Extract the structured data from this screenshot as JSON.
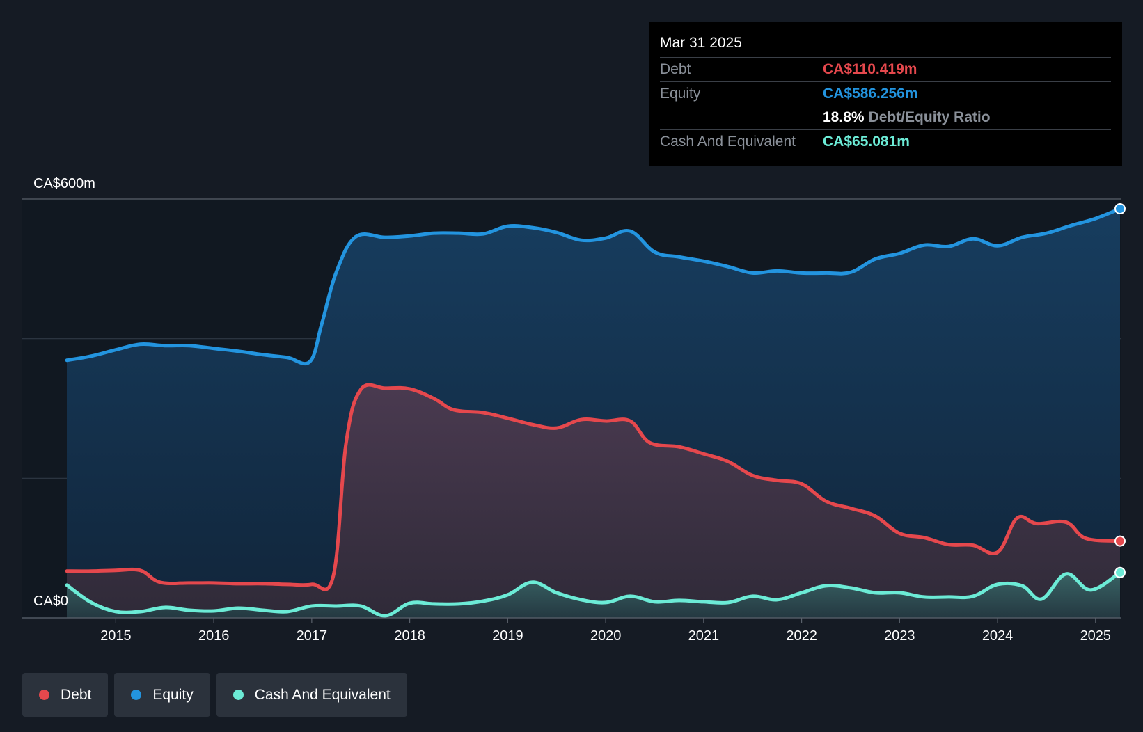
{
  "tooltip": {
    "date": "Mar 31 2025",
    "rows": [
      {
        "label": "Debt",
        "value": "CA$110.419m",
        "color": "#e5484d"
      },
      {
        "label": "Equity",
        "value": "CA$586.256m",
        "color": "#2394df"
      },
      {
        "label": "",
        "value": "18.8%",
        "extra": "Debt/Equity Ratio",
        "color": "#ffffff"
      },
      {
        "label": "Cash And Equivalent",
        "value": "CA$65.081m",
        "color": "#6cebd6"
      }
    ]
  },
  "legend": [
    {
      "label": "Debt",
      "color": "#e5484d"
    },
    {
      "label": "Equity",
      "color": "#2394df"
    },
    {
      "label": "Cash And Equivalent",
      "color": "#6cebd6"
    }
  ],
  "chart_data": {
    "type": "area",
    "y_top_label": "CA$600m",
    "y_bottom_label": "CA$0",
    "ylim": [
      0,
      600
    ],
    "xlim": [
      2014.5,
      2025.25
    ],
    "x_ticks": [
      "2015",
      "2016",
      "2017",
      "2018",
      "2019",
      "2020",
      "2021",
      "2022",
      "2023",
      "2024",
      "2025"
    ],
    "grid": true,
    "legend_position": "bottom-left",
    "series": [
      {
        "name": "Equity",
        "color": "#2394df",
        "points": [
          [
            2014.5,
            369
          ],
          [
            2014.75,
            375
          ],
          [
            2015.0,
            384
          ],
          [
            2015.25,
            392
          ],
          [
            2015.5,
            390
          ],
          [
            2015.75,
            390
          ],
          [
            2016.0,
            386
          ],
          [
            2016.25,
            382
          ],
          [
            2016.5,
            377
          ],
          [
            2016.75,
            373
          ],
          [
            2016.98,
            367
          ],
          [
            2017.1,
            420
          ],
          [
            2017.25,
            495
          ],
          [
            2017.45,
            546
          ],
          [
            2017.75,
            545
          ],
          [
            2018.0,
            547
          ],
          [
            2018.25,
            551
          ],
          [
            2018.5,
            551
          ],
          [
            2018.75,
            550
          ],
          [
            2019.0,
            561
          ],
          [
            2019.25,
            559
          ],
          [
            2019.5,
            552
          ],
          [
            2019.75,
            541
          ],
          [
            2020.0,
            544
          ],
          [
            2020.25,
            554
          ],
          [
            2020.5,
            524
          ],
          [
            2020.75,
            517
          ],
          [
            2021.0,
            511
          ],
          [
            2021.25,
            503
          ],
          [
            2021.5,
            494
          ],
          [
            2021.75,
            497
          ],
          [
            2022.0,
            494
          ],
          [
            2022.25,
            494
          ],
          [
            2022.5,
            495
          ],
          [
            2022.75,
            514
          ],
          [
            2023.0,
            522
          ],
          [
            2023.25,
            534
          ],
          [
            2023.5,
            532
          ],
          [
            2023.75,
            543
          ],
          [
            2024.0,
            533
          ],
          [
            2024.25,
            545
          ],
          [
            2024.5,
            551
          ],
          [
            2024.75,
            562
          ],
          [
            2025.0,
            572
          ],
          [
            2025.25,
            586
          ]
        ]
      },
      {
        "name": "Debt",
        "color": "#e5484d",
        "points": [
          [
            2014.5,
            67
          ],
          [
            2014.75,
            67
          ],
          [
            2015.0,
            68
          ],
          [
            2015.25,
            68
          ],
          [
            2015.45,
            51
          ],
          [
            2015.75,
            50
          ],
          [
            2016.0,
            50
          ],
          [
            2016.25,
            49
          ],
          [
            2016.5,
            49
          ],
          [
            2016.75,
            48
          ],
          [
            2017.0,
            48
          ],
          [
            2017.22,
            60
          ],
          [
            2017.35,
            250
          ],
          [
            2017.5,
            327
          ],
          [
            2017.75,
            329
          ],
          [
            2018.0,
            328
          ],
          [
            2018.25,
            314
          ],
          [
            2018.45,
            298
          ],
          [
            2018.75,
            294
          ],
          [
            2019.0,
            286
          ],
          [
            2019.25,
            277
          ],
          [
            2019.5,
            272
          ],
          [
            2019.75,
            284
          ],
          [
            2020.0,
            282
          ],
          [
            2020.25,
            282
          ],
          [
            2020.45,
            251
          ],
          [
            2020.75,
            245
          ],
          [
            2021.0,
            235
          ],
          [
            2021.25,
            224
          ],
          [
            2021.5,
            204
          ],
          [
            2021.75,
            197
          ],
          [
            2022.0,
            192
          ],
          [
            2022.25,
            167
          ],
          [
            2022.5,
            157
          ],
          [
            2022.75,
            146
          ],
          [
            2023.0,
            121
          ],
          [
            2023.25,
            115
          ],
          [
            2023.5,
            105
          ],
          [
            2023.75,
            104
          ],
          [
            2024.0,
            94
          ],
          [
            2024.2,
            143
          ],
          [
            2024.4,
            135
          ],
          [
            2024.7,
            137
          ],
          [
            2024.9,
            114
          ],
          [
            2025.25,
            110
          ]
        ]
      },
      {
        "name": "Cash And Equivalent",
        "color": "#6cebd6",
        "points": [
          [
            2014.5,
            47
          ],
          [
            2014.75,
            22
          ],
          [
            2015.0,
            9
          ],
          [
            2015.25,
            9
          ],
          [
            2015.5,
            15
          ],
          [
            2015.75,
            11
          ],
          [
            2016.0,
            10
          ],
          [
            2016.25,
            14
          ],
          [
            2016.5,
            11
          ],
          [
            2016.75,
            9
          ],
          [
            2017.0,
            17
          ],
          [
            2017.25,
            17
          ],
          [
            2017.5,
            17
          ],
          [
            2017.75,
            3
          ],
          [
            2018.0,
            21
          ],
          [
            2018.25,
            20
          ],
          [
            2018.5,
            20
          ],
          [
            2018.75,
            24
          ],
          [
            2019.0,
            33
          ],
          [
            2019.25,
            51
          ],
          [
            2019.5,
            36
          ],
          [
            2019.75,
            26
          ],
          [
            2020.0,
            22
          ],
          [
            2020.25,
            31
          ],
          [
            2020.5,
            23
          ],
          [
            2020.75,
            25
          ],
          [
            2021.0,
            23
          ],
          [
            2021.25,
            22
          ],
          [
            2021.5,
            31
          ],
          [
            2021.75,
            26
          ],
          [
            2022.0,
            36
          ],
          [
            2022.25,
            46
          ],
          [
            2022.5,
            43
          ],
          [
            2022.75,
            36
          ],
          [
            2023.0,
            36
          ],
          [
            2023.25,
            30
          ],
          [
            2023.5,
            30
          ],
          [
            2023.75,
            31
          ],
          [
            2024.0,
            48
          ],
          [
            2024.25,
            46
          ],
          [
            2024.45,
            27
          ],
          [
            2024.7,
            63
          ],
          [
            2024.95,
            40
          ],
          [
            2025.25,
            65
          ]
        ]
      }
    ]
  }
}
